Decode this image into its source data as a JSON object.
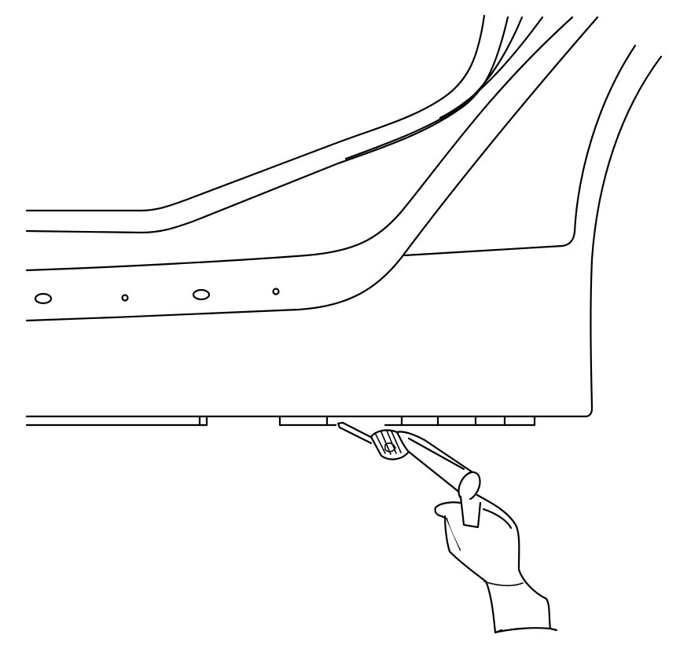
{
  "figure": {
    "title": "",
    "caption": "",
    "colors": {
      "line": "#000000",
      "background": "#ffffff"
    },
    "components": [
      {
        "name": "windshield-pillar-outer-line",
        "kind": "body-panel-contour"
      },
      {
        "name": "windshield-pillar-inner-line",
        "kind": "body-panel-contour"
      },
      {
        "name": "roof-rail-line",
        "kind": "body-panel-contour"
      },
      {
        "name": "door-opening-flange",
        "kind": "body-panel-contour"
      },
      {
        "name": "rocker-panel-outer",
        "kind": "body-panel"
      },
      {
        "name": "lower-pinch-weld-flange",
        "kind": "body-panel"
      },
      {
        "name": "drill-tool",
        "kind": "tool",
        "icon": "drill-icon"
      },
      {
        "name": "gloved-hand",
        "kind": "hand",
        "icon": "hand-icon"
      }
    ],
    "holes": {
      "oval_holes": 2,
      "round_holes": 2
    },
    "flange_segments": 4
  }
}
